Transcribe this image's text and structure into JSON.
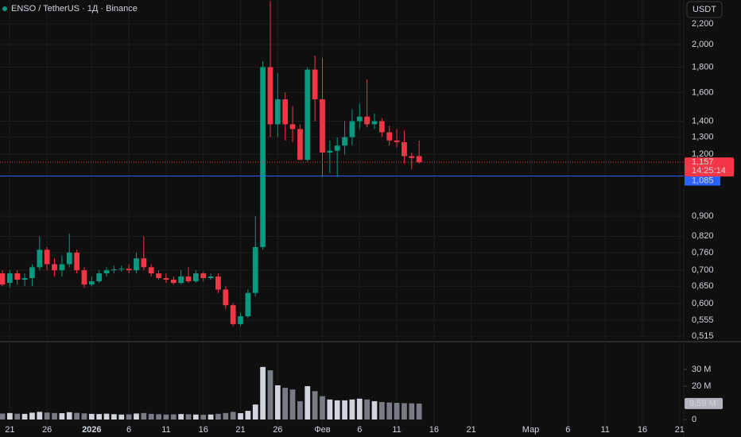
{
  "chart_data": {
    "type": "candlestick",
    "title": "ENSO / TetherUS · 1Д · Binance",
    "currency": "USDT",
    "log_scale": true,
    "grid": true,
    "up_color": "#089981",
    "down_color": "#f23645",
    "open": [
      0.69,
      0.66,
      0.69,
      0.67,
      0.675,
      0.71,
      0.77,
      0.72,
      0.7,
      0.72,
      0.76,
      0.7,
      0.655,
      0.665,
      0.69,
      0.7,
      0.703,
      0.705,
      0.7,
      0.74,
      0.71,
      0.69,
      0.675,
      0.67,
      0.66,
      0.68,
      0.665,
      0.69,
      0.675,
      0.68,
      0.64,
      0.595,
      0.545,
      0.565,
      0.63,
      0.78,
      1.8,
      1.38,
      1.55,
      1.38,
      1.35,
      1.17,
      1.78,
      1.55,
      1.21,
      1.22,
      1.25,
      1.3,
      1.4,
      1.43,
      1.38,
      1.4,
      1.33,
      1.28,
      1.27,
      1.19,
      1.19
    ],
    "high": [
      0.7,
      0.7,
      0.7,
      0.69,
      0.72,
      0.82,
      0.78,
      0.74,
      0.75,
      0.83,
      0.77,
      0.71,
      0.68,
      0.7,
      0.71,
      0.715,
      0.715,
      0.72,
      0.76,
      0.82,
      0.72,
      0.7,
      0.69,
      0.68,
      0.7,
      0.71,
      0.7,
      0.695,
      0.69,
      0.69,
      0.65,
      0.6,
      0.575,
      0.64,
      0.9,
      1.85,
      2.45,
      1.75,
      1.6,
      1.5,
      1.38,
      1.8,
      1.9,
      1.88,
      1.28,
      1.3,
      1.4,
      1.48,
      1.52,
      1.7,
      1.45,
      1.42,
      1.37,
      1.35,
      1.34,
      1.21,
      1.28
    ],
    "low": [
      0.65,
      0.645,
      0.655,
      0.65,
      0.65,
      0.7,
      0.7,
      0.68,
      0.68,
      0.71,
      0.69,
      0.645,
      0.65,
      0.66,
      0.68,
      0.69,
      0.695,
      0.69,
      0.69,
      0.7,
      0.68,
      0.67,
      0.66,
      0.655,
      0.655,
      0.66,
      0.66,
      0.665,
      0.67,
      0.63,
      0.585,
      0.54,
      0.54,
      0.56,
      0.62,
      0.77,
      1.3,
      1.3,
      1.28,
      1.27,
      1.17,
      1.16,
      1.4,
      1.08,
      1.1,
      1.08,
      1.2,
      1.25,
      1.35,
      1.36,
      1.35,
      1.3,
      1.25,
      1.24,
      1.15,
      1.12,
      1.15
    ],
    "close": [
      0.655,
      0.69,
      0.67,
      0.675,
      0.71,
      0.77,
      0.72,
      0.7,
      0.72,
      0.76,
      0.7,
      0.655,
      0.665,
      0.69,
      0.7,
      0.703,
      0.705,
      0.7,
      0.74,
      0.71,
      0.69,
      0.675,
      0.67,
      0.66,
      0.68,
      0.665,
      0.69,
      0.675,
      0.68,
      0.64,
      0.595,
      0.545,
      0.565,
      0.63,
      0.78,
      1.8,
      1.38,
      1.55,
      1.38,
      1.35,
      1.17,
      1.78,
      1.55,
      1.21,
      1.22,
      1.25,
      1.3,
      1.4,
      1.43,
      1.38,
      1.4,
      1.33,
      1.28,
      1.27,
      1.19,
      1.18,
      1.157
    ],
    "xlim": [
      -0.32,
      91.56
    ],
    "xticks": [
      {
        "value": 1,
        "label": "21"
      },
      {
        "value": 6,
        "label": "26"
      },
      {
        "value": 12,
        "label": "2026"
      },
      {
        "value": 17,
        "label": "6"
      },
      {
        "value": 22,
        "label": "11"
      },
      {
        "value": 27,
        "label": "16"
      },
      {
        "value": 32,
        "label": "21"
      },
      {
        "value": 37,
        "label": "26"
      },
      {
        "value": 43,
        "label": "Фев"
      },
      {
        "value": 48,
        "label": "6"
      },
      {
        "value": 53,
        "label": "11"
      },
      {
        "value": 58,
        "label": "16"
      },
      {
        "value": 63,
        "label": "21"
      },
      {
        "value": 71,
        "label": "Мар"
      },
      {
        "value": 76,
        "label": "6"
      },
      {
        "value": 81,
        "label": "11"
      },
      {
        "value": 86,
        "label": "16"
      },
      {
        "value": 91,
        "label": "21"
      }
    ],
    "ylim": [
      0.506,
      2.46
    ],
    "yticks": [
      {
        "value": 0.515,
        "label": "0,515"
      },
      {
        "value": 0.555,
        "label": "0,555"
      },
      {
        "value": 0.6,
        "label": "0,600"
      },
      {
        "value": 0.65,
        "label": "0,650"
      },
      {
        "value": 0.7,
        "label": "0,700"
      },
      {
        "value": 0.76,
        "label": "0,760"
      },
      {
        "value": 0.82,
        "label": "0,820"
      },
      {
        "value": 0.9,
        "label": "0,900"
      },
      {
        "value": 1.2,
        "label": "1,200"
      },
      {
        "value": 1.3,
        "label": "1,300"
      },
      {
        "value": 1.4,
        "label": "1,400"
      },
      {
        "value": 1.6,
        "label": "1,600"
      },
      {
        "value": 1.8,
        "label": "1,800"
      },
      {
        "value": 2.0,
        "label": "2,000"
      },
      {
        "value": 2.2,
        "label": "2,200"
      }
    ],
    "last_price": {
      "value": 1.157,
      "label": "1,157",
      "countdown": "14:25:14"
    },
    "price_line": {
      "value": 1.085,
      "label": "1,085",
      "color": "#2962ff"
    },
    "volume": {
      "up_color": "#d1d4dc",
      "down_color": "#787b86",
      "values": [
        3600000,
        3900000,
        3500000,
        3400000,
        4100000,
        4600000,
        4200000,
        3900000,
        3800000,
        4400000,
        4000000,
        3700000,
        3400000,
        3300000,
        3500000,
        3200000,
        3000000,
        3100000,
        3600000,
        3900000,
        3400000,
        3200000,
        3000000,
        3100000,
        3300000,
        3200000,
        3000000,
        2900000,
        3000000,
        3400000,
        3900000,
        4600000,
        3800000,
        5200000,
        9000000,
        31500000,
        29500000,
        20500000,
        19000000,
        18000000,
        11000000,
        20000000,
        17000000,
        14000000,
        12000000,
        11500000,
        11500000,
        12000000,
        12500000,
        12000000,
        11000000,
        10500000,
        10200000,
        10000000,
        9800000,
        9700000,
        9590000
      ],
      "ylim": [
        -5700000,
        45700000
      ],
      "yticks": [
        0,
        {
          "value": 20000000,
          "label": "20 M"
        },
        {
          "value": 30000000,
          "label": "30 M"
        }
      ],
      "last": {
        "value": 9590000,
        "label": "9,59 M"
      }
    }
  }
}
